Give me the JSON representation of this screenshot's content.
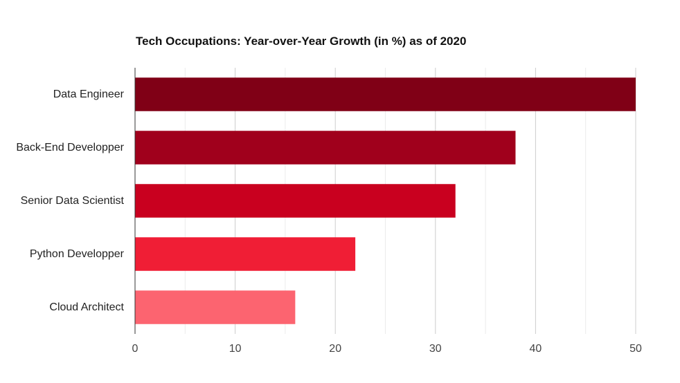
{
  "chart_data": {
    "type": "bar",
    "orientation": "horizontal",
    "title": "Tech Occupations: Year-over-Year Growth (in %) as of 2020",
    "xlabel": "",
    "ylabel": "",
    "categories": [
      "Data Engineer",
      "Back-End Developper",
      "Senior Data Scientist",
      "Python Developper",
      "Cloud Architect"
    ],
    "values": [
      50,
      38,
      32,
      22,
      16
    ],
    "colors": [
      "#800016",
      "#a0001c",
      "#c9001f",
      "#f01e35",
      "#fc6470"
    ],
    "xlim": [
      0,
      50
    ],
    "x_ticks": [
      0,
      10,
      20,
      30,
      40,
      50
    ],
    "grid": true,
    "legend": "none"
  }
}
